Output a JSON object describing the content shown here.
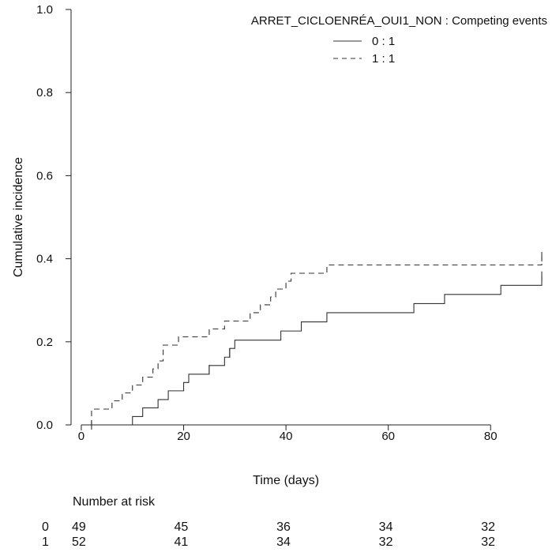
{
  "chart_data": {
    "type": "line",
    "subtype": "cumulative-incidence-step",
    "legend": {
      "title": "ARRET_CICLOENRÉA_OUI1_NON : Competing events",
      "position": "top-right",
      "entries": [
        {
          "label": "0 : 1",
          "style": "solid"
        },
        {
          "label": "1 : 1",
          "style": "dashed"
        }
      ]
    },
    "xlabel": "Time (days)",
    "ylabel": "Cumulative incidence",
    "xlim": [
      -2,
      92
    ],
    "ylim": [
      0,
      1.0
    ],
    "xticks": [
      0,
      20,
      40,
      60,
      80
    ],
    "yticks": [
      "0.0",
      "0.2",
      "0.4",
      "0.6",
      "0.8",
      "1.0"
    ],
    "grid": false,
    "series": [
      {
        "name": "0 : 1",
        "style": "solid",
        "steps": [
          [
            0,
            0.0
          ],
          [
            10,
            0.02
          ],
          [
            12,
            0.041
          ],
          [
            15,
            0.061
          ],
          [
            17,
            0.082
          ],
          [
            20,
            0.102
          ],
          [
            21,
            0.122
          ],
          [
            25,
            0.143
          ],
          [
            28,
            0.163
          ],
          [
            29,
            0.184
          ],
          [
            30,
            0.204
          ],
          [
            39,
            0.226
          ],
          [
            43,
            0.248
          ],
          [
            48,
            0.27
          ],
          [
            65,
            0.292
          ],
          [
            71,
            0.314
          ],
          [
            82,
            0.336
          ],
          [
            90,
            0.358
          ]
        ],
        "censored": [
          [
            2,
            0.0
          ],
          [
            25,
            0.133
          ],
          [
            29,
            0.173
          ],
          [
            90,
            0.358
          ]
        ]
      },
      {
        "name": "1 : 1",
        "style": "dashed",
        "steps": [
          [
            0,
            0.0
          ],
          [
            2,
            0.038
          ],
          [
            6,
            0.058
          ],
          [
            8,
            0.077
          ],
          [
            10,
            0.096
          ],
          [
            12,
            0.115
          ],
          [
            14,
            0.135
          ],
          [
            15,
            0.154
          ],
          [
            16,
            0.192
          ],
          [
            19,
            0.212
          ],
          [
            25,
            0.231
          ],
          [
            28,
            0.25
          ],
          [
            33,
            0.27
          ],
          [
            35,
            0.289
          ],
          [
            37,
            0.308
          ],
          [
            38,
            0.327
          ],
          [
            40,
            0.346
          ],
          [
            41,
            0.365
          ],
          [
            48,
            0.385
          ],
          [
            90,
            0.405
          ]
        ],
        "censored": [
          [
            90,
            0.405
          ]
        ]
      }
    ],
    "risk_table": {
      "title": "Number at risk",
      "times": [
        0,
        20,
        40,
        60,
        80
      ],
      "rows": [
        {
          "label": "0",
          "values": [
            49,
            45,
            36,
            34,
            32
          ]
        },
        {
          "label": "1",
          "values": [
            52,
            41,
            34,
            32,
            32
          ]
        }
      ]
    }
  }
}
